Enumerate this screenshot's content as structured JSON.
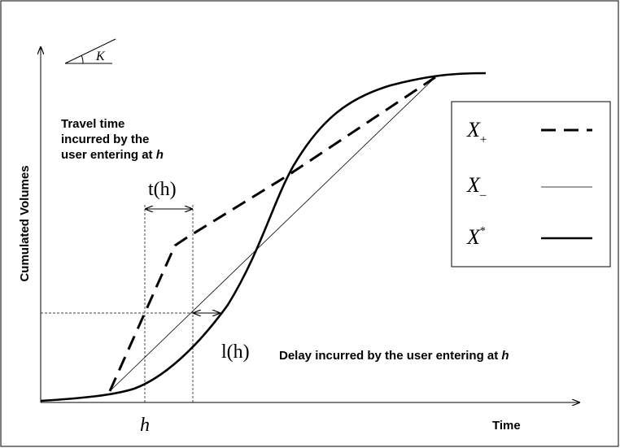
{
  "axes": {
    "y_label": "Cumulated Volumes",
    "x_label": "Time"
  },
  "slope_label": "K",
  "travel_time_note": {
    "lines": [
      "Travel time",
      "incurred by the",
      "user entering at"
    ],
    "variable": "h"
  },
  "delay_note": {
    "text": "Delay incurred by the user entering at",
    "variable": "h"
  },
  "t_label": "t(h)",
  "l_label": "l(h)",
  "h_label": "h",
  "legend": [
    {
      "symbol": "X",
      "index": "+"
    },
    {
      "symbol": "X",
      "index": "–"
    },
    {
      "symbol": "X",
      "index": "*"
    }
  ]
}
